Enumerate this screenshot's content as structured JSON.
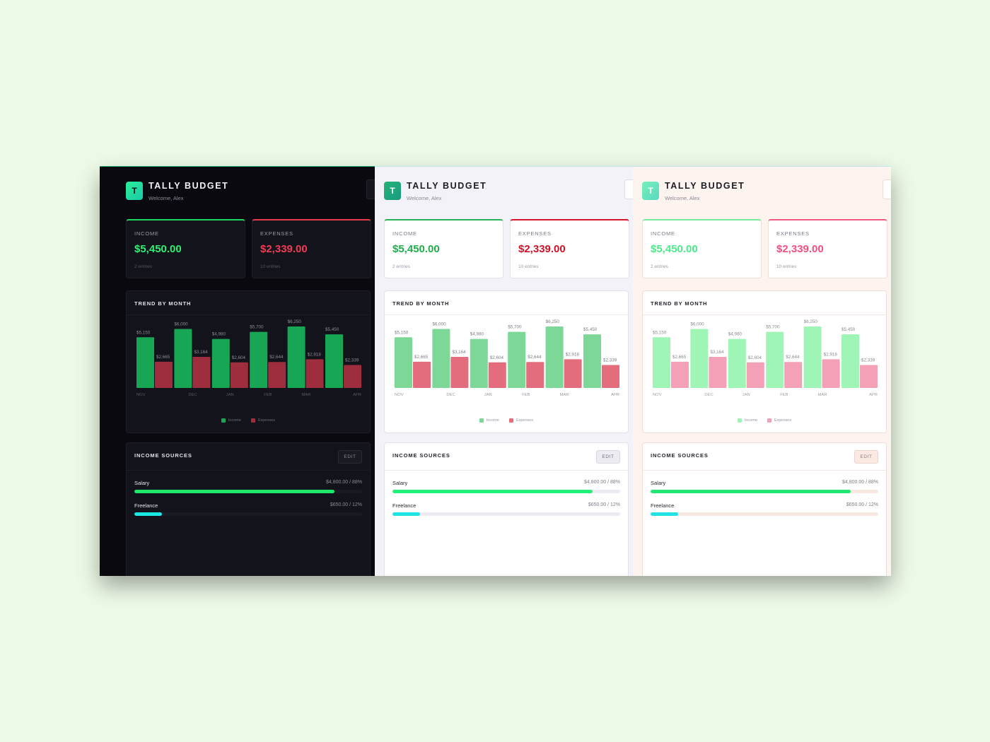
{
  "app": {
    "logo_letter": "T",
    "title": "TALLY BUDGET",
    "welcome": "Welcome, Alex"
  },
  "stats": {
    "income": {
      "label": "INCOME",
      "value": "$5,450.00",
      "sub": "2 entries"
    },
    "expenses": {
      "label": "EXPENSES",
      "value": "$2,339.00",
      "sub": "10 entries"
    }
  },
  "trend": {
    "title": "TREND BY MONTH",
    "legend": {
      "income": "Income",
      "expenses": "Expenses"
    }
  },
  "chart_data": {
    "type": "bar",
    "categories": [
      "NOV",
      "DEC",
      "JAN",
      "FEB",
      "MAR",
      "APR"
    ],
    "series": [
      {
        "name": "Income",
        "values": [
          5150,
          6000,
          4980,
          5700,
          6250,
          5450
        ],
        "labels": [
          "$5,150",
          "$6,000",
          "$4,980",
          "$5,700",
          "$6,250",
          "$5,450"
        ]
      },
      {
        "name": "Expenses",
        "values": [
          2665,
          3164,
          2604,
          2644,
          2918,
          2339
        ],
        "labels": [
          "$2,665",
          "$3,164",
          "$2,604",
          "$2,644",
          "$2,918",
          "$2,339"
        ]
      }
    ],
    "ylim": [
      0,
      6250
    ],
    "grid": false,
    "legend_position": "bottom"
  },
  "sources": {
    "title": "INCOME SOURCES",
    "edit_label": "EDIT",
    "items": [
      {
        "name": "Salary",
        "value": "$4,800.00 / 88%",
        "percent": 88
      },
      {
        "name": "Freelance",
        "value": "$650.00 / 12%",
        "percent": 12
      }
    ]
  },
  "themes": [
    {
      "name": "dark",
      "income_color": "#17a654",
      "expense_color": "#9e2d3e",
      "label_color": "#8c8c99",
      "axis_color": "#595966",
      "salary_bar": "#1ee86a",
      "freelance_bar": "#19e7e2"
    },
    {
      "name": "light",
      "income_color": "#7dd797",
      "expense_color": "#e36d7c",
      "label_color": "#7e7e88",
      "axis_color": "#9a9aa4",
      "salary_bar": "#23ef7a",
      "freelance_bar": "#1de5e5"
    },
    {
      "name": "blush",
      "income_color": "#9ff5b6",
      "expense_color": "#f4a0b6",
      "label_color": "#8a8a94",
      "axis_color": "#a39f9f",
      "salary_bar": "#22e573",
      "freelance_bar": "#21e3e6"
    }
  ]
}
